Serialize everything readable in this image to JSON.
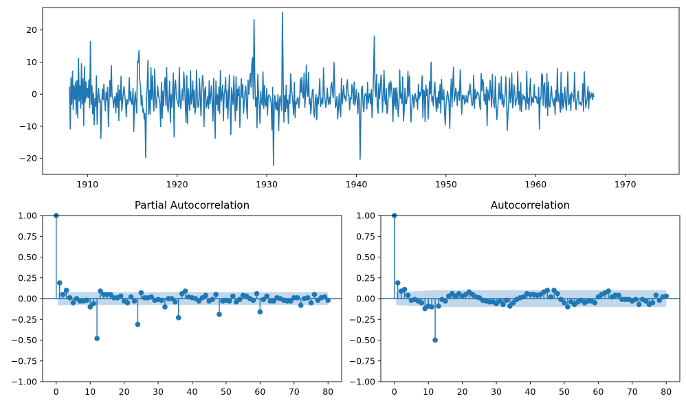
{
  "chart_data": [
    {
      "type": "line",
      "title": "",
      "xlabel": "",
      "ylabel": "",
      "x_start": 1908.0,
      "x_step": 0.0833333,
      "xlim": [
        1905,
        1976
      ],
      "ylim": [
        -25,
        27
      ],
      "xticks": [
        1910,
        1920,
        1930,
        1940,
        1950,
        1960,
        1970
      ],
      "yticks": [
        -20,
        -10,
        0,
        10,
        20
      ],
      "color": "#1f77b4",
      "grid": false,
      "values": [
        2.4,
        -10.8,
        5.1,
        -3.2,
        7.2,
        -4.8,
        2.7,
        -1.6,
        3.8,
        -6.2,
        4.3,
        -7.4,
        11.2,
        -2.1,
        2.6,
        -4.4,
        9.5,
        -3.1,
        4.8,
        -9.8,
        8.6,
        -2.5,
        3.9,
        -1.2,
        1.8,
        -1.1,
        4.5,
        -4.2,
        16.4,
        -3.2,
        2.6,
        -6.1,
        0.4,
        -9.6,
        -1.4,
        -3.8,
        5.7,
        -9.4,
        -1.1,
        1.8,
        -2.6,
        -1.7,
        -13.8,
        -3.6,
        1.6,
        -1.8,
        3.1,
        -1.4,
        -5.2,
        0.6,
        -1.8,
        2.1,
        -10.1,
        -2.3,
        4.2,
        -0.9,
        8.9,
        -0.8,
        -1.1,
        -4.2,
        -1.9,
        -0.7,
        -5.9,
        0.4,
        -4.1,
        2.8,
        -8.2,
        1.3,
        -1.9,
        5.6,
        -5.3,
        -2.3,
        0.4,
        2.4,
        -0.3,
        -2.6,
        -7.1,
        -1.6,
        -3.1,
        -1.3,
        5.2,
        -2.2,
        0.7,
        -3.1,
        -3.1,
        1.8,
        -11.6,
        -2.5,
        0.7,
        -2.6,
        -5.9,
        10.2,
        9.9,
        13.6,
        4.4,
        2.5,
        -3.4,
        -0.4,
        -5.6,
        -4.6,
        -7.8,
        -6.0,
        -19.7,
        -1.1,
        2.2,
        10.6,
        -6.3,
        1.2,
        -6.2,
        8.3,
        -1.6,
        5.8,
        -2.1,
        -5.3,
        7.9,
        -0.1,
        -4.3,
        -1.8,
        2.6,
        -0.4,
        -1.2,
        -3.1,
        -10.1,
        3.7,
        -7.5,
        1.0,
        -3.7,
        3.3,
        5.2,
        -3.5,
        8.3,
        -3.5,
        -5.6,
        -1.6,
        4.0,
        -8.8,
        0.0,
        -4.1,
        0.0,
        6.6,
        -13.4,
        2.9,
        4.4,
        -0.9,
        -2.0,
        -2.4,
        -3.9,
        8.3,
        -2.4,
        -4.5,
        -0.9,
        1.6,
        -2.0,
        6.9,
        3.1,
        -3.1,
        -8.8,
        5.8,
        -9.2,
        1.7,
        -2.3,
        -5.1,
        7.3,
        -3.1,
        -1.3,
        4.1,
        -4.1,
        1.2,
        -6.1,
        -4.2,
        7.5,
        -1.2,
        -4.1,
        -3.3,
        4.9,
        -1.3,
        -6.8,
        1.0,
        5.8,
        3.7,
        -10.1,
        1.1,
        2.3,
        -4.3,
        -3.1,
        -0.8,
        -4.5,
        4.2,
        -3.1,
        -0.5,
        2.6,
        -2.8,
        -8.4,
        4.9,
        -3.9,
        -13.7,
        4.1,
        -3.2,
        -0.2,
        -5.2,
        2.3,
        -6.1,
        7.3,
        -2.2,
        -0.2,
        2.8,
        -8.3,
        0.0,
        1.3,
        5.3,
        -4.3,
        1.1,
        -7.7,
        -0.5,
        6.0,
        -4.1,
        -12.6,
        2.0,
        -0.8,
        -3.3,
        5.7,
        -2.2,
        -8.3,
        5.4,
        -5.1,
        1.6,
        -0.5,
        2.5,
        -10.3,
        -0.9,
        4.8,
        -1.1,
        3.1,
        -6.0,
        -2.3,
        0.9,
        2.6,
        -3.4,
        -7.7,
        4.4,
        0.0,
        3.9,
        6.5,
        2.2,
        9.2,
        11.4,
        -1.5,
        23.2,
        5.1,
        -3.8,
        -0.9,
        -10.5,
        6.1,
        -0.2,
        -3.8,
        -9.1,
        1.0,
        -2.4,
        -3.4,
        6.9,
        -4.5,
        2.7,
        -3.3,
        -3.8,
        1.8,
        -6.5,
        -0.8,
        -0.2,
        -0.6,
        -1.3,
        -3.2,
        -11.2,
        2.1,
        -22.2,
        -3.2,
        -0.4,
        -4.7,
        -2.5,
        -5.0,
        -0.1,
        -11.4,
        -1.8,
        -0.5,
        -2.9,
        -5.2,
        25.6,
        4.9,
        -8.7,
        -0.4,
        -5.4,
        2.8,
        -4.5,
        -1.8,
        -9.2,
        -0.3,
        -2.9,
        6.4,
        1.9,
        -0.3,
        -2.9,
        -6.5,
        3.7,
        -7.3,
        -2.4,
        -3.1,
        -1.1,
        -1.2,
        -4.3,
        -1.8,
        4.8,
        0.6,
        5.3,
        -0.1,
        -1.2,
        6.6,
        -4.1,
        -0.4,
        9.1,
        1.0,
        -0.7,
        6.8,
        -3.1,
        -1.4,
        -6.2,
        -2.8,
        1.0,
        1.6,
        -5.8,
        -7.2,
        -1.5,
        -0.1,
        -8.0,
        -1.1,
        -3.1,
        0.1,
        4.8,
        -3.9,
        -2.6,
        -1.1,
        -3.1,
        8.2,
        0.6,
        -1.8,
        -4.1,
        -2.6,
        1.9,
        -1.8,
        -3.2,
        -0.9,
        -3.1,
        2.6,
        3.7,
        0.4,
        -1.1,
        9.9,
        2.1,
        -4.2,
        -3.3,
        -0.7,
        -7.7,
        -4.1,
        0.2,
        -4.6,
        -7.0,
        4.9,
        -3.1,
        -0.1,
        2.7,
        -1.3,
        -0.6,
        -2.2,
        2.8,
        4.5,
        -0.4,
        -0.4,
        -4.9,
        -1.1,
        -1.6,
        3.0,
        1.5,
        -3.1,
        3.8,
        -3.5,
        -1.7,
        1.4,
        -1.7,
        -6.1,
        0.4,
        -2.3,
        -20.3,
        -5.8,
        1.8,
        2.5,
        -3.6,
        -5.5,
        -0.7,
        0.2,
        -0.3,
        -4.6,
        3.7,
        -2.7,
        -0.6,
        0.2,
        -3.1,
        1.4,
        -7.3,
        -1.0,
        6.6,
        18.1,
        1.4,
        -0.8,
        6.1,
        -3.8,
        -6.0,
        3.3,
        -1.3,
        1.7,
        6.0,
        2.2,
        -5.6,
        -0.2,
        7.4,
        -1.4,
        -3.2,
        1.8,
        -6.0,
        -4.8,
        2.2,
        3.5,
        -1.0,
        4.1,
        2.6,
        -1.1,
        -8.6,
        1.9,
        -3.7,
        1.9,
        -4.7,
        2.0,
        -2.0,
        -7.0,
        -2.8,
        7.5,
        -1.2,
        0.2,
        -3.0,
        5.4,
        -8.4,
        -4.9,
        1.9,
        -3.1,
        -2.9,
        -0.3,
        7.2,
        -0.6,
        5.7,
        -1.3,
        -8.7,
        -4.8,
        -0.2,
        -1.0,
        -4.3,
        -0.4,
        0.2,
        -2.2,
        -1.5,
        -4.7,
        3.1,
        -1.5,
        0.6,
        -0.6,
        1.5,
        5.7,
        -7.3,
        1.3,
        0.9,
        -8.6,
        2.9,
        -0.5,
        1.6,
        -7.8,
        -2.6,
        3.9,
        0.1,
        10.0,
        -2.3,
        -0.8,
        -3.7,
        0.7,
        3.8,
        -1.6,
        -5.4,
        -1.0,
        -4.4,
        0.9,
        -2.8,
        3.0,
        -5.9,
        4.6,
        -1.6,
        -1.7,
        1.4,
        -5.5,
        -9.6,
        -3.3,
        -1.0,
        0.9,
        -0.7,
        -3.1,
        -10.7,
        -0.6,
        4.7,
        -4.0,
        3.0,
        8.4,
        -2.2,
        -0.8,
        1.9,
        0.1,
        -3.6,
        0.6,
        0.9,
        -1.9,
        7.6,
        0.3,
        -6.2,
        -0.3,
        -1.5,
        -0.4,
        -3.1,
        -2.2,
        -0.4,
        -2.5,
        -2.6,
        0.9,
        -0.2,
        3.2,
        0.9,
        -1.8,
        -3.6,
        -2.9,
        5.9,
        -4.4,
        1.4,
        -1.5,
        -0.7,
        0.7,
        0.3,
        -0.3,
        -3.4,
        -4.8,
        6.5,
        1.0,
        4.6,
        3.4,
        -2.1,
        -0.1,
        -3.2,
        2.1,
        -9.8,
        1.3,
        -1.1,
        -2.0,
        4.3,
        0.7,
        -4.0,
        6.1,
        -1.4,
        -3.0,
        -4.3,
        5.5,
        -3.2,
        -7.9,
        -5.1,
        -1.5,
        3.4,
        -1.4,
        -1.6,
        5.4,
        -3.2,
        -0.2,
        -4.0,
        -2.6,
        -0.5,
        5.4,
        -0.3,
        -11.3,
        -6.0,
        -2.1,
        5.0,
        -2.7,
        -0.8,
        6.6,
        -4.3,
        -2.7,
        2.9,
        0.4,
        -3.6,
        -1.8,
        -1.4,
        7.1,
        -3.2,
        0.8,
        -5.2,
        3.6,
        -5.4,
        -1.9,
        -0.1,
        -1.6,
        -0.7,
        -2.0,
        -4.8,
        7.2,
        -2.8,
        -1.3,
        -4.9,
        1.3,
        4.9,
        -3.6,
        -0.9,
        -2.4,
        -2.6,
        3.0,
        -1.3,
        -0.7,
        -0.9,
        -2.8,
        -2.9,
        2.1,
        -10.9,
        -0.9,
        -1.5,
        6.4,
        6.0,
        -3.5,
        2.7,
        3.5,
        -4.3,
        -3.5,
        6.4,
        -6.7,
        3.8,
        -3.5,
        -4.0,
        -0.3,
        2.5,
        -1.2,
        -2.3,
        -3.5,
        -1.3,
        -6.4,
        1.2,
        -2.2,
        8.0,
        -2.3,
        0.1,
        -2.8,
        -5.6,
        6.8,
        -4.7,
        0.3,
        -4.3,
        -2.2,
        2.2,
        -2.3,
        -5.1,
        -0.4,
        7.0,
        -3.3,
        -2.8,
        -0.1,
        -5.1,
        0.5,
        -0.5,
        -0.7,
        -2.2,
        6.8,
        -1.8,
        -4.9,
        -2.0,
        -0.5,
        1.0,
        -3.2,
        -2.5,
        -2.7,
        -3.6,
        -2.3,
        3.3,
        -5.3,
        7.0,
        0.6,
        -4.2,
        -2.6,
        -1.3,
        2.5,
        -4.6,
        0.8,
        -1.3,
        -0.6,
        0.4,
        -1.7,
        0.2,
        -0.9
      ]
    },
    {
      "type": "stem",
      "title": "Partial Autocorrelation",
      "xlabel": "",
      "ylabel": "",
      "xlim": [
        -4,
        84
      ],
      "ylim": [
        -1.0,
        1.0
      ],
      "xticks": [
        0,
        10,
        20,
        30,
        40,
        50,
        60,
        70,
        80
      ],
      "yticks": [
        -1.0,
        -0.75,
        -0.5,
        -0.25,
        0.0,
        0.25,
        0.5,
        0.75,
        1.0
      ],
      "ytick_labels": [
        "−1.00",
        "−0.75",
        "−0.50",
        "−0.25",
        "0.00",
        "0.25",
        "0.50",
        "0.75",
        "1.00"
      ],
      "xtick_labels": [
        "0",
        "10",
        "20",
        "30",
        "40",
        "50",
        "60",
        "70",
        "80"
      ],
      "confidence_band": 0.0785,
      "color": "#1f77b4",
      "band_color": "#c3d7ec",
      "values": [
        1.0,
        0.19,
        0.05,
        0.1,
        0.01,
        -0.05,
        0.0,
        -0.03,
        -0.03,
        -0.02,
        -0.1,
        -0.06,
        -0.48,
        0.09,
        0.05,
        0.05,
        0.05,
        0.01,
        0.01,
        0.03,
        -0.03,
        -0.05,
        0.02,
        -0.03,
        -0.31,
        0.07,
        0.01,
        0.01,
        0.02,
        -0.02,
        -0.01,
        -0.02,
        -0.1,
        0.0,
        0.0,
        -0.04,
        -0.23,
        0.06,
        0.09,
        0.02,
        0.01,
        0.0,
        -0.03,
        0.01,
        0.04,
        -0.03,
        -0.01,
        0.05,
        -0.19,
        -0.03,
        -0.02,
        -0.03,
        0.03,
        -0.04,
        -0.01,
        0.04,
        0.03,
        0.0,
        -0.02,
        0.06,
        -0.16,
        -0.01,
        0.03,
        -0.03,
        -0.03,
        0.01,
        0.0,
        -0.02,
        -0.03,
        -0.03,
        0.01,
        0.01,
        -0.08,
        0.0,
        0.01,
        -0.05,
        0.05,
        -0.02,
        0.01,
        0.02,
        -0.02
      ]
    },
    {
      "type": "stem",
      "title": "Autocorrelation",
      "xlabel": "",
      "ylabel": "",
      "xlim": [
        -4,
        84
      ],
      "ylim": [
        -1.0,
        1.0
      ],
      "xticks": [
        0,
        10,
        20,
        30,
        40,
        50,
        60,
        70,
        80
      ],
      "yticks": [
        -1.0,
        -0.75,
        -0.5,
        -0.25,
        0.0,
        0.25,
        0.5,
        0.75,
        1.0
      ],
      "ytick_labels": [
        "−1.00",
        "−0.75",
        "−0.50",
        "−0.25",
        "0.00",
        "0.25",
        "0.50",
        "0.75",
        "1.00"
      ],
      "xtick_labels": [
        "0",
        "10",
        "20",
        "30",
        "40",
        "50",
        "60",
        "70",
        "80"
      ],
      "band_base": 0.0785,
      "band_growth": 0.0225,
      "color": "#1f77b4",
      "band_color": "#c3d7ec",
      "values": [
        1.0,
        0.19,
        0.09,
        0.11,
        0.04,
        -0.02,
        -0.01,
        -0.03,
        -0.05,
        -0.12,
        -0.09,
        -0.1,
        -0.5,
        -0.09,
        -0.01,
        -0.03,
        0.03,
        0.06,
        0.03,
        0.06,
        0.03,
        0.05,
        0.08,
        0.05,
        0.02,
        0.01,
        -0.02,
        -0.03,
        -0.04,
        -0.04,
        -0.06,
        -0.03,
        -0.07,
        -0.02,
        -0.09,
        -0.05,
        -0.01,
        0.01,
        0.02,
        0.06,
        0.05,
        0.05,
        0.04,
        0.05,
        0.08,
        0.1,
        0.02,
        0.1,
        0.06,
        -0.01,
        -0.05,
        -0.1,
        -0.04,
        -0.07,
        -0.04,
        -0.02,
        -0.05,
        -0.03,
        -0.03,
        -0.05,
        0.02,
        0.05,
        0.07,
        0.09,
        0.02,
        0.04,
        0.04,
        -0.01,
        -0.01,
        -0.01,
        -0.03,
        -0.01,
        -0.07,
        -0.01,
        -0.03,
        -0.07,
        -0.05,
        0.04,
        -0.02,
        0.02,
        0.03
      ]
    }
  ]
}
